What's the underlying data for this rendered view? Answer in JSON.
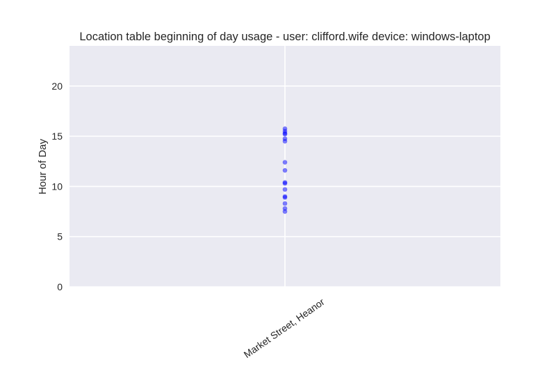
{
  "chart_data": {
    "type": "scatter",
    "title": "Location table beginning of day usage -  user: clifford.wife device: windows-laptop",
    "xlabel": "",
    "ylabel": "Hour of Day",
    "categories": [
      "Market Street, Heanor"
    ],
    "ylim": [
      0,
      24
    ],
    "yticks": [
      0,
      5,
      10,
      15,
      20
    ],
    "grid": true,
    "marker_color": "#0000ff",
    "marker_alpha": 0.5,
    "background_color": "#eaeaf2",
    "points": [
      {
        "x": "Market Street, Heanor",
        "y": 15.75
      },
      {
        "x": "Market Street, Heanor",
        "y": 15.5
      },
      {
        "x": "Market Street, Heanor",
        "y": 15.3
      },
      {
        "x": "Market Street, Heanor",
        "y": 15.2
      },
      {
        "x": "Market Street, Heanor",
        "y": 14.75
      },
      {
        "x": "Market Street, Heanor",
        "y": 14.5
      },
      {
        "x": "Market Street, Heanor",
        "y": 12.4
      },
      {
        "x": "Market Street, Heanor",
        "y": 11.6
      },
      {
        "x": "Market Street, Heanor",
        "y": 10.4
      },
      {
        "x": "Market Street, Heanor",
        "y": 10.3
      },
      {
        "x": "Market Street, Heanor",
        "y": 9.7
      },
      {
        "x": "Market Street, Heanor",
        "y": 9.0
      },
      {
        "x": "Market Street, Heanor",
        "y": 8.9
      },
      {
        "x": "Market Street, Heanor",
        "y": 8.3
      },
      {
        "x": "Market Street, Heanor",
        "y": 7.8
      },
      {
        "x": "Market Street, Heanor",
        "y": 7.5
      }
    ]
  }
}
